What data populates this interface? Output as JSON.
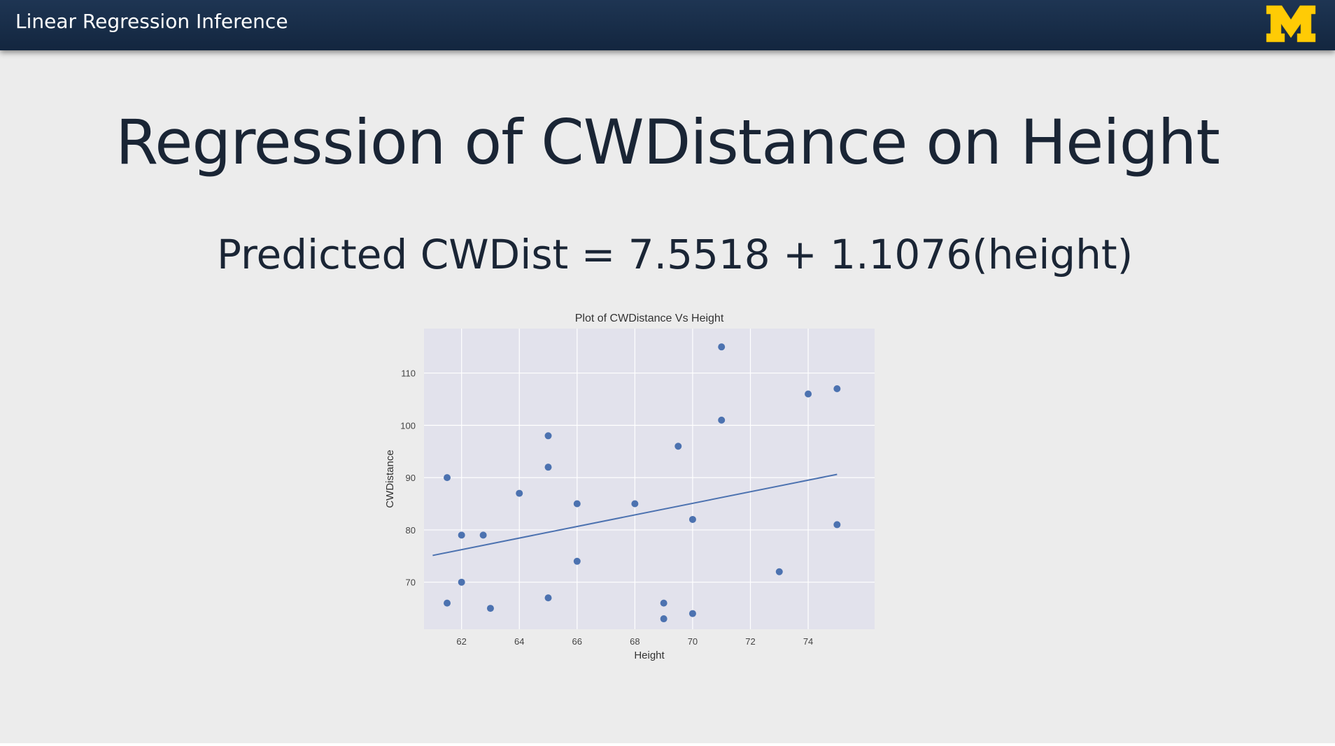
{
  "header": {
    "title": "Linear Regression Inference",
    "logo_letter": "M",
    "logo_color": "#ffcb05",
    "bar_color": "#1a2f4b"
  },
  "slide": {
    "title": "Regression of CWDistance on Height",
    "equation": "Predicted CWDist = 7.5518 + 1.1076(height)"
  },
  "chart_data": {
    "type": "scatter",
    "title": "Plot of CWDistance Vs Height",
    "xlabel": "Height",
    "ylabel": "CWDistance",
    "xlim": [
      60.7,
      76.3
    ],
    "ylim": [
      61,
      118.5
    ],
    "xticks": [
      62,
      64,
      66,
      68,
      70,
      72,
      74
    ],
    "yticks": [
      70,
      80,
      90,
      100,
      110
    ],
    "grid": true,
    "background": "#e2e2ec",
    "marker_color": "#4c72b0",
    "points": [
      {
        "x": 61.5,
        "y": 90
      },
      {
        "x": 61.5,
        "y": 66
      },
      {
        "x": 62,
        "y": 79
      },
      {
        "x": 62,
        "y": 70
      },
      {
        "x": 62.75,
        "y": 79
      },
      {
        "x": 63,
        "y": 65
      },
      {
        "x": 64,
        "y": 87
      },
      {
        "x": 65,
        "y": 98
      },
      {
        "x": 65,
        "y": 92
      },
      {
        "x": 65,
        "y": 67
      },
      {
        "x": 66,
        "y": 85
      },
      {
        "x": 66,
        "y": 74
      },
      {
        "x": 68,
        "y": 85
      },
      {
        "x": 69,
        "y": 66
      },
      {
        "x": 69,
        "y": 63
      },
      {
        "x": 69.5,
        "y": 96
      },
      {
        "x": 70,
        "y": 82
      },
      {
        "x": 70,
        "y": 64
      },
      {
        "x": 71,
        "y": 115
      },
      {
        "x": 71,
        "y": 101
      },
      {
        "x": 73,
        "y": 72
      },
      {
        "x": 74,
        "y": 106
      },
      {
        "x": 75,
        "y": 107
      },
      {
        "x": 75,
        "y": 81
      }
    ],
    "regression": {
      "intercept": 7.5518,
      "slope": 1.1076,
      "x_range": [
        61.0,
        75.0
      ]
    }
  }
}
